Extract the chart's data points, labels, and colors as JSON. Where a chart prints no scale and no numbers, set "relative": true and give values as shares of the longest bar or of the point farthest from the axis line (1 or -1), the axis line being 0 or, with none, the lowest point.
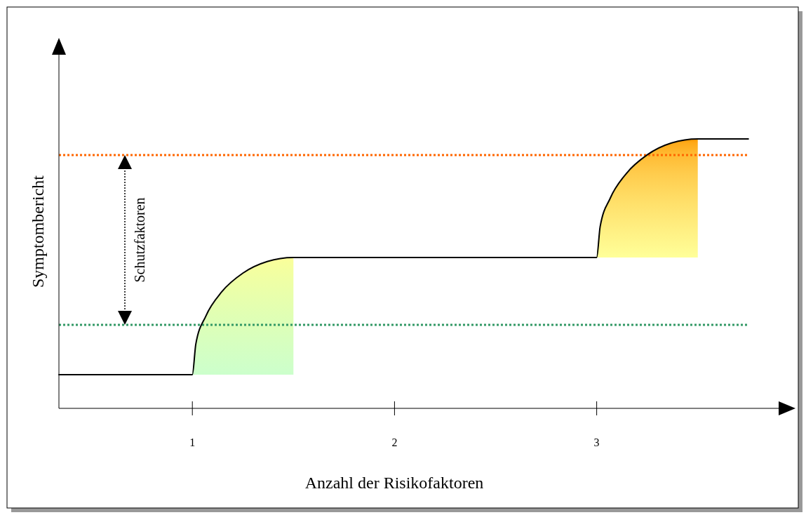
{
  "chart_data": {
    "type": "line",
    "relative": true,
    "xlabel": "Anzahl der Risikofaktoren",
    "ylabel": "Symptombericht",
    "xlim": [
      0.34,
      3.9
    ],
    "xticks": [
      1,
      2,
      3
    ],
    "grid": false,
    "marker": "none",
    "line_style": "solid",
    "annotations": [
      "Schutzfaktoren"
    ],
    "ref_lines": [
      {
        "axis": "y",
        "value": 0.94,
        "color": "#ff6600",
        "line_style": "dotted"
      },
      {
        "axis": "y",
        "value": 0.31,
        "color": "#339966",
        "line_style": "dotted"
      }
    ],
    "series": [
      {
        "type": "area",
        "colors": [
          "#ccffcc",
          "#d6ffc0",
          "#e0ffb4",
          "#eaffaa",
          "#f2ffa2",
          "#f8ff9c",
          "#ffff99"
        ],
        "x": [
          1,
          1.017,
          1.067,
          1.146,
          1.25,
          1.37,
          1.5
        ],
        "values": [
          0.125,
          0.238,
          0.343,
          0.433,
          0.502,
          0.545,
          0.56
        ]
      },
      {
        "type": "area",
        "colors": [
          "#ffff99",
          "#ffee80",
          "#ffdd66",
          "#ffcc4d",
          "#ffbb33",
          "#ffaa1a",
          "#ff9900"
        ],
        "x": [
          3,
          3.017,
          3.067,
          3.146,
          3.25,
          3.37,
          3.5
        ],
        "values": [
          0.56,
          0.674,
          0.78,
          0.871,
          0.941,
          0.985,
          1.0
        ]
      },
      {
        "color": "#000000",
        "x": [
          0.34,
          1,
          1.017,
          1.067,
          1.146,
          1.25,
          1.37,
          1.5,
          3,
          3.017,
          3.067,
          3.146,
          3.25,
          3.37,
          3.5,
          3.75
        ],
        "values": [
          0.125,
          0.125,
          0.238,
          0.343,
          0.433,
          0.502,
          0.545,
          0.56,
          0.56,
          0.674,
          0.78,
          0.871,
          0.941,
          0.985,
          1.0,
          1.0
        ]
      }
    ]
  }
}
